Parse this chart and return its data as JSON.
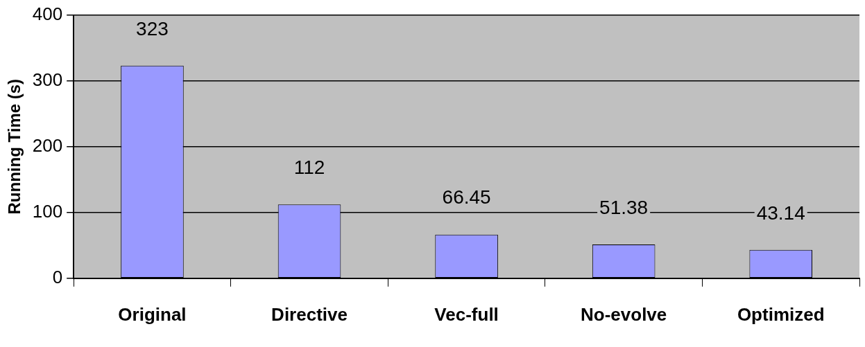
{
  "chart_data": {
    "type": "bar",
    "ylabel": "Running Time (s)",
    "categories": [
      "Original",
      "Directive",
      "Vec-full",
      "No-evolve",
      "Optimized"
    ],
    "values": [
      323,
      112,
      66.45,
      51.38,
      43.14
    ],
    "color": "#9999ff",
    "ylim": [
      0,
      400
    ],
    "yticks": [
      0,
      100,
      200,
      300,
      400
    ],
    "grid": "y",
    "data_labels": true,
    "legend": false
  }
}
